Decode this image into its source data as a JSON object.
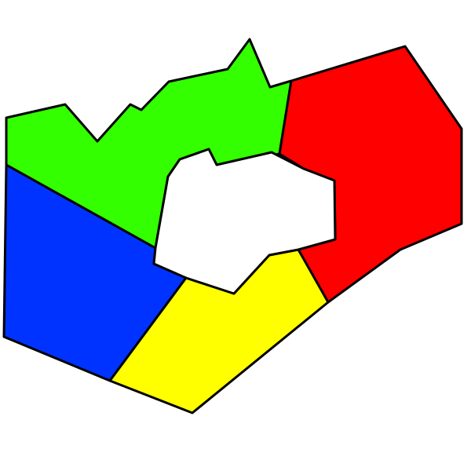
{
  "regions": [
    {
      "name": "green-region",
      "color": "#33ff00"
    },
    {
      "name": "red-region",
      "color": "#ff0000"
    },
    {
      "name": "blue-region",
      "color": "#0033ff"
    },
    {
      "name": "yellow-region",
      "color": "#ffff00"
    }
  ],
  "hole_color": "#ffffff"
}
